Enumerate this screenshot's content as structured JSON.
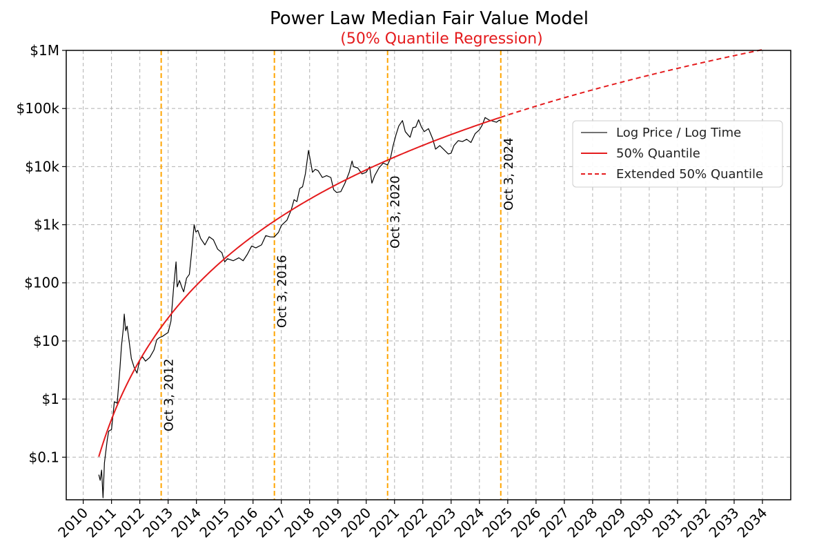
{
  "chart_data": {
    "type": "line",
    "title": "Power Law Median Fair Value Model",
    "subtitle": "(50% Quantile Regression)",
    "xlabel": "",
    "ylabel": "",
    "x_axis": {
      "type": "date-years",
      "range": [
        2009.4,
        2035.0
      ]
    },
    "y_axis": {
      "scale": "log",
      "range": [
        0.0185,
        1000000
      ]
    },
    "grid": true,
    "x_ticks": [
      "2010",
      "2011",
      "2012",
      "2013",
      "2014",
      "2015",
      "2016",
      "2017",
      "2018",
      "2019",
      "2020",
      "2021",
      "2022",
      "2023",
      "2024",
      "2025",
      "2026",
      "2027",
      "2028",
      "2029",
      "2030",
      "2031",
      "2032",
      "2033",
      "2034"
    ],
    "y_ticks": [
      {
        "value": 0.1,
        "label": "$0.1"
      },
      {
        "value": 1,
        "label": "$1"
      },
      {
        "value": 10,
        "label": "$10"
      },
      {
        "value": 100,
        "label": "$100"
      },
      {
        "value": 1000,
        "label": "$1k"
      },
      {
        "value": 10000,
        "label": "$10k"
      },
      {
        "value": 100000,
        "label": "$100k"
      },
      {
        "value": 1000000,
        "label": "$1M"
      }
    ],
    "vertical_lines": [
      {
        "x": 2012.755,
        "label": "Oct 3, 2012"
      },
      {
        "x": 2016.755,
        "label": "Oct 3, 2016"
      },
      {
        "x": 2020.755,
        "label": "Oct 3, 2020"
      },
      {
        "x": 2024.755,
        "label": "Oct 3, 2024"
      }
    ],
    "legend": {
      "position": "right",
      "entries": [
        "Log Price / Log Time",
        "50% Quantile",
        "Extended 50% Quantile"
      ]
    },
    "series": [
      {
        "name": "Log Price / Log Time",
        "color": "#000000",
        "style": "solid",
        "points": [
          [
            2010.55,
            0.05
          ],
          [
            2010.6,
            0.04
          ],
          [
            2010.65,
            0.06
          ],
          [
            2010.7,
            0.02
          ],
          [
            2010.75,
            0.08
          ],
          [
            2010.85,
            0.2
          ],
          [
            2010.9,
            0.28
          ],
          [
            2011.0,
            0.3
          ],
          [
            2011.1,
            0.9
          ],
          [
            2011.2,
            0.85
          ],
          [
            2011.3,
            3.5
          ],
          [
            2011.35,
            8
          ],
          [
            2011.42,
            17
          ],
          [
            2011.45,
            29
          ],
          [
            2011.5,
            15
          ],
          [
            2011.55,
            18
          ],
          [
            2011.6,
            12
          ],
          [
            2011.7,
            5
          ],
          [
            2011.8,
            3.5
          ],
          [
            2011.9,
            2.8
          ],
          [
            2012.0,
            4.8
          ],
          [
            2012.1,
            5.3
          ],
          [
            2012.2,
            4.5
          ],
          [
            2012.35,
            5.2
          ],
          [
            2012.5,
            7
          ],
          [
            2012.6,
            10.5
          ],
          [
            2012.7,
            11.5
          ],
          [
            2012.8,
            12
          ],
          [
            2012.9,
            13
          ],
          [
            2013.0,
            14
          ],
          [
            2013.1,
            22
          ],
          [
            2013.2,
            90
          ],
          [
            2013.28,
            230
          ],
          [
            2013.32,
            85
          ],
          [
            2013.4,
            110
          ],
          [
            2013.5,
            80
          ],
          [
            2013.55,
            70
          ],
          [
            2013.65,
            120
          ],
          [
            2013.75,
            140
          ],
          [
            2013.82,
            300
          ],
          [
            2013.92,
            1000
          ],
          [
            2013.98,
            750
          ],
          [
            2014.05,
            800
          ],
          [
            2014.15,
            580
          ],
          [
            2014.3,
            450
          ],
          [
            2014.45,
            620
          ],
          [
            2014.6,
            550
          ],
          [
            2014.75,
            380
          ],
          [
            2014.9,
            330
          ],
          [
            2015.0,
            230
          ],
          [
            2015.1,
            260
          ],
          [
            2015.3,
            240
          ],
          [
            2015.5,
            270
          ],
          [
            2015.65,
            240
          ],
          [
            2015.8,
            310
          ],
          [
            2015.95,
            430
          ],
          [
            2016.1,
            400
          ],
          [
            2016.3,
            450
          ],
          [
            2016.45,
            650
          ],
          [
            2016.6,
            620
          ],
          [
            2016.75,
            615
          ],
          [
            2016.9,
            740
          ],
          [
            2017.0,
            970
          ],
          [
            2017.2,
            1200
          ],
          [
            2017.35,
            1800
          ],
          [
            2017.45,
            2700
          ],
          [
            2017.55,
            2500
          ],
          [
            2017.65,
            4200
          ],
          [
            2017.75,
            4500
          ],
          [
            2017.85,
            7500
          ],
          [
            2017.96,
            19000
          ],
          [
            2018.05,
            11000
          ],
          [
            2018.1,
            8000
          ],
          [
            2018.2,
            9000
          ],
          [
            2018.3,
            8500
          ],
          [
            2018.45,
            6500
          ],
          [
            2018.6,
            7000
          ],
          [
            2018.75,
            6500
          ],
          [
            2018.85,
            4000
          ],
          [
            2018.95,
            3600
          ],
          [
            2019.1,
            3700
          ],
          [
            2019.25,
            5200
          ],
          [
            2019.4,
            8000
          ],
          [
            2019.5,
            12500
          ],
          [
            2019.55,
            10000
          ],
          [
            2019.7,
            9500
          ],
          [
            2019.85,
            7500
          ],
          [
            2020.0,
            8000
          ],
          [
            2020.12,
            10000
          ],
          [
            2020.2,
            5200
          ],
          [
            2020.3,
            7000
          ],
          [
            2020.45,
            9500
          ],
          [
            2020.6,
            11500
          ],
          [
            2020.75,
            10700
          ],
          [
            2020.85,
            13500
          ],
          [
            2020.95,
            23000
          ],
          [
            2021.05,
            35000
          ],
          [
            2021.15,
            50000
          ],
          [
            2021.28,
            62000
          ],
          [
            2021.38,
            40000
          ],
          [
            2021.48,
            35000
          ],
          [
            2021.55,
            32000
          ],
          [
            2021.65,
            47000
          ],
          [
            2021.75,
            48000
          ],
          [
            2021.85,
            64000
          ],
          [
            2021.95,
            48000
          ],
          [
            2022.05,
            40000
          ],
          [
            2022.2,
            45000
          ],
          [
            2022.35,
            30000
          ],
          [
            2022.45,
            20000
          ],
          [
            2022.6,
            23000
          ],
          [
            2022.75,
            19500
          ],
          [
            2022.9,
            16500
          ],
          [
            2023.0,
            17000
          ],
          [
            2023.1,
            23000
          ],
          [
            2023.25,
            28000
          ],
          [
            2023.4,
            27000
          ],
          [
            2023.55,
            29500
          ],
          [
            2023.7,
            26000
          ],
          [
            2023.85,
            37000
          ],
          [
            2024.0,
            43000
          ],
          [
            2024.1,
            52000
          ],
          [
            2024.2,
            70000
          ],
          [
            2024.35,
            63000
          ],
          [
            2024.5,
            60000
          ],
          [
            2024.6,
            58000
          ],
          [
            2024.7,
            63000
          ],
          [
            2024.75,
            61000
          ]
        ]
      },
      {
        "name": "50% Quantile",
        "color": "#e41a1c",
        "style": "solid",
        "power_law": {
          "genesis": 2009.0,
          "a": 1.1e-17,
          "b": 5.8
        },
        "x_range": [
          2010.55,
          2024.75
        ]
      },
      {
        "name": "Extended 50% Quantile",
        "color": "#e41a1c",
        "style": "dashed",
        "power_law": {
          "genesis": 2009.0,
          "a": 1.1e-17,
          "b": 5.8
        },
        "x_range": [
          2024.75,
          2034.0
        ]
      }
    ]
  }
}
